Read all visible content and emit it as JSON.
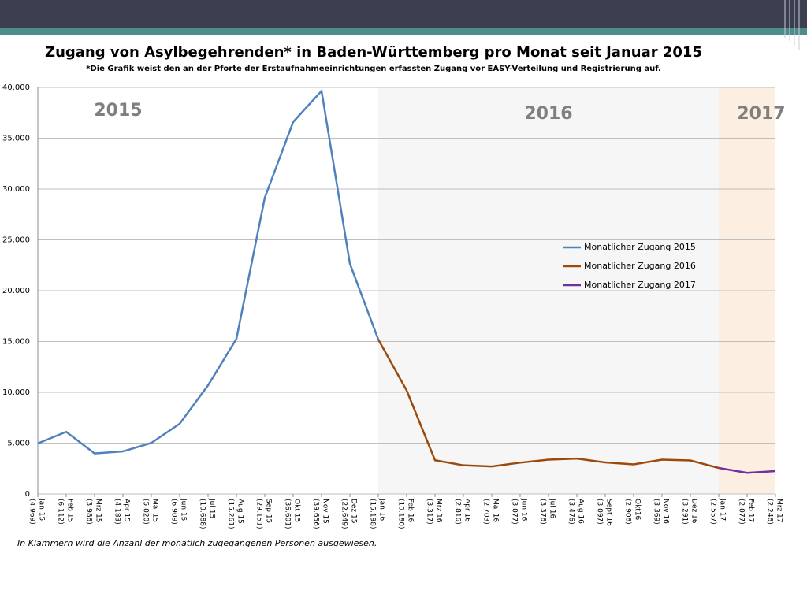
{
  "chart_data": {
    "type": "line",
    "title": "Zugang von Asylbegehrenden* in Baden-Württemberg pro Monat seit Januar 2015",
    "subtitle": "*Die Grafik weist den an der Pforte der Erstaufnahmeeinrichtungen erfassten Zugang vor EASY-Verteilung und Registrierung auf.",
    "footnote": "In Klammern wird die Anzahl der monatlich zugegangenen Personen ausgewiesen.",
    "categories": [
      "Jan 15",
      "Feb 15",
      "Mrz 15",
      "Apr 15",
      "Mai 15",
      "Jun 15",
      "Jul 15",
      "Aug 15",
      "Sep 15",
      "Okt 15",
      "Nov 15",
      "Dez 15",
      "Jan 16",
      "Feb 16",
      "Mrz 16",
      "Apr 16",
      "Mai 16",
      "Jun 16",
      "Jul 16",
      "Aug 16",
      "Sept 16",
      "Okt16",
      "Nov 16",
      "Dez 16",
      "Jan 17",
      "Feb 17",
      "Mrz 17"
    ],
    "series": [
      {
        "name": "Monatlicher Zugang 2015",
        "year": "2015",
        "color": "#4f81bd",
        "background": "#ffffff",
        "values": [
          4969,
          6112,
          3986,
          4183,
          5020,
          6909,
          10688,
          15261,
          29151,
          36601,
          39656,
          22649,
          15198,
          null,
          null,
          null,
          null,
          null,
          null,
          null,
          null,
          null,
          null,
          null,
          null,
          null,
          null
        ],
        "value_labels": [
          "(4.969)",
          "(6.112)",
          "(3.986)",
          "(4.183)",
          "(5.020)",
          "(6.909)",
          "(10.688)",
          "(15.261)",
          "(29.151)",
          "(36.601)",
          "(39.656)",
          "(22.649)",
          null,
          null,
          null,
          null,
          null,
          null,
          null,
          null,
          null,
          null,
          null,
          null,
          null,
          null,
          null
        ]
      },
      {
        "name": "Monatlicher Zugang 2016",
        "year": "2016",
        "color": "#9c4a0c",
        "background": "#f6f6f6",
        "values": [
          null,
          null,
          null,
          null,
          null,
          null,
          null,
          null,
          null,
          null,
          null,
          null,
          15198,
          10180,
          3317,
          2816,
          2703,
          3077,
          3376,
          3476,
          3097,
          2906,
          3369,
          3291,
          2557,
          null,
          null
        ],
        "value_labels": [
          null,
          null,
          null,
          null,
          null,
          null,
          null,
          null,
          null,
          null,
          null,
          null,
          "(15.198)",
          "(10.180)",
          "(3.317)",
          "(2.816)",
          "(2.703)",
          "(3.077)",
          "(3.376)",
          "(3.476)",
          "(3.097)",
          "(2.906)",
          "(3.369)",
          "(3.291)",
          null,
          null,
          null
        ]
      },
      {
        "name": "Monatlicher Zugang 2017",
        "year": "2017",
        "color": "#7030a0",
        "background": "#fcefe2",
        "values": [
          null,
          null,
          null,
          null,
          null,
          null,
          null,
          null,
          null,
          null,
          null,
          null,
          null,
          null,
          null,
          null,
          null,
          null,
          null,
          null,
          null,
          null,
          null,
          null,
          2557,
          2077,
          2246
        ],
        "value_labels": [
          null,
          null,
          null,
          null,
          null,
          null,
          null,
          null,
          null,
          null,
          null,
          null,
          null,
          null,
          null,
          null,
          null,
          null,
          null,
          null,
          null,
          null,
          null,
          null,
          "(2.557)",
          "(2.077)",
          "(2.246)"
        ]
      }
    ],
    "ylim": [
      0,
      40000
    ],
    "yticks": [
      0,
      {
        "value": 5000,
        "label": "5.000"
      },
      {
        "value": 10000,
        "label": "10.000"
      },
      {
        "value": 15000,
        "label": "15.000"
      },
      {
        "value": 20000,
        "label": "20.000"
      },
      {
        "value": 25000,
        "label": "25.000"
      },
      {
        "value": 30000,
        "label": "30.000"
      },
      {
        "value": 35000,
        "label": "35.000"
      },
      {
        "value": 40000,
        "label": "40.000"
      }
    ],
    "grid": true,
    "legend": "right"
  }
}
